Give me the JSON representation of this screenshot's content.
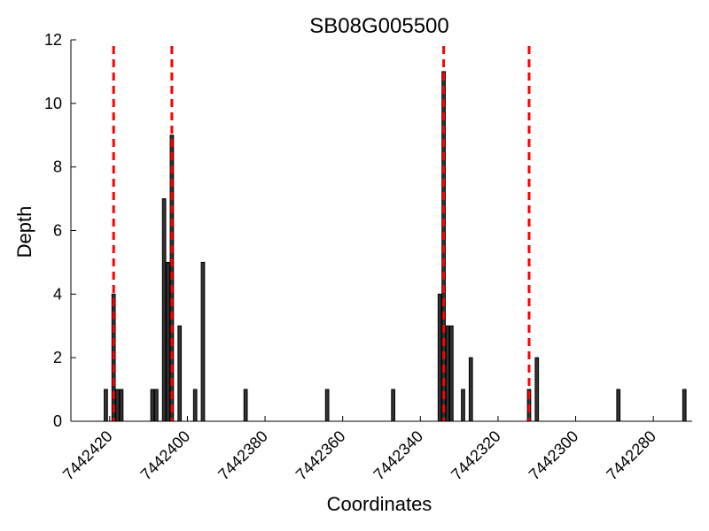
{
  "chart_data": {
    "type": "bar",
    "title": "SB08G005500",
    "xlabel": "Coordinates",
    "ylabel": "Depth",
    "x_reversed": true,
    "xlim": [
      7442430,
      7442270
    ],
    "ylim": [
      0,
      12
    ],
    "yticks": [
      0,
      2,
      4,
      6,
      8,
      10,
      12
    ],
    "xticks": [
      7442420,
      7442400,
      7442380,
      7442360,
      7442340,
      7442320,
      7442300,
      7442280
    ],
    "grid": false,
    "bar_color": "#333333",
    "bars": [
      {
        "x": 7442421,
        "y": 1
      },
      {
        "x": 7442419,
        "y": 4
      },
      {
        "x": 7442418,
        "y": 1
      },
      {
        "x": 7442417,
        "y": 1
      },
      {
        "x": 7442409,
        "y": 1
      },
      {
        "x": 7442408,
        "y": 1
      },
      {
        "x": 7442406,
        "y": 7
      },
      {
        "x": 7442405,
        "y": 5
      },
      {
        "x": 7442404,
        "y": 9
      },
      {
        "x": 7442402,
        "y": 3
      },
      {
        "x": 7442398,
        "y": 1
      },
      {
        "x": 7442396,
        "y": 5
      },
      {
        "x": 7442385,
        "y": 1
      },
      {
        "x": 7442364,
        "y": 1
      },
      {
        "x": 7442347,
        "y": 1
      },
      {
        "x": 7442335,
        "y": 4
      },
      {
        "x": 7442334,
        "y": 11
      },
      {
        "x": 7442333,
        "y": 3
      },
      {
        "x": 7442332,
        "y": 3
      },
      {
        "x": 7442329,
        "y": 1
      },
      {
        "x": 7442327,
        "y": 2
      },
      {
        "x": 7442312,
        "y": 1
      },
      {
        "x": 7442310,
        "y": 2
      },
      {
        "x": 7442289,
        "y": 1
      },
      {
        "x": 7442272,
        "y": 1
      }
    ],
    "marker_lines": [
      7442419,
      7442404,
      7442334,
      7442312
    ],
    "marker_color": "#ff0000"
  }
}
